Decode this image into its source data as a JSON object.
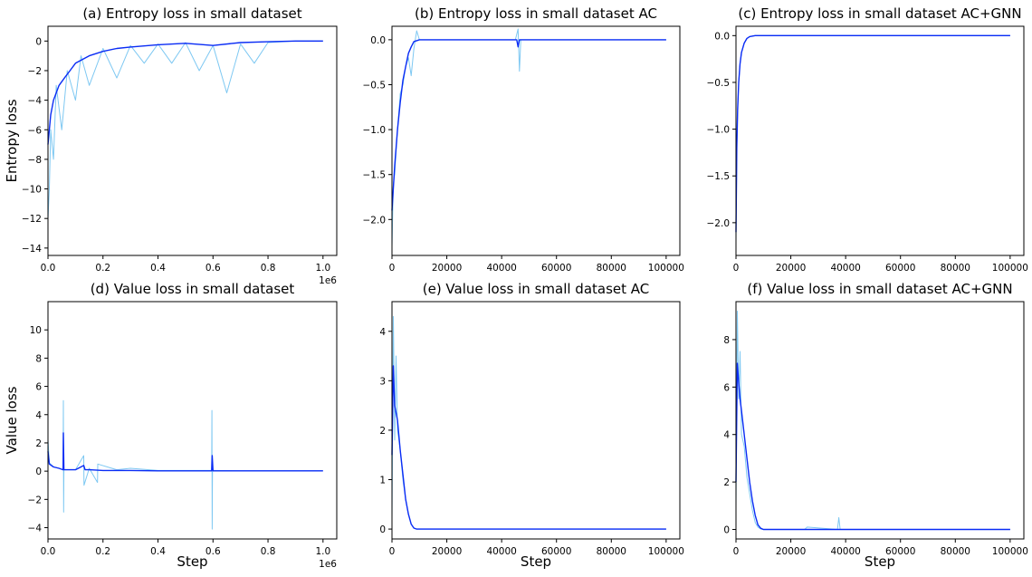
{
  "colors": {
    "raw": "#7ec8f2",
    "smooth": "#0a2cf5"
  },
  "chart_data": [
    {
      "type": "line",
      "title": "(a) Entropy loss in small dataset",
      "xlabel": "",
      "ylabel": "Entropy loss",
      "xlim": [
        0,
        1050000
      ],
      "ylim": [
        -14.5,
        1
      ],
      "xticks": [
        0,
        200000,
        400000,
        600000,
        800000,
        1000000
      ],
      "xticklabels": [
        "0.0",
        "0.2",
        "0.4",
        "0.6",
        "0.8",
        "1.0"
      ],
      "xoffset": "1e6",
      "yticks": [
        -14,
        -12,
        -10,
        -8,
        -6,
        -4,
        -2,
        0
      ],
      "yticklabels": [
        "−14",
        "−12",
        "−10",
        "−8",
        "−6",
        "−4",
        "−2",
        "0"
      ],
      "series": [
        {
          "role": "raw",
          "x": [
            0,
            5000,
            10000,
            20000,
            30000,
            50000,
            70000,
            100000,
            120000,
            150000,
            200000,
            250000,
            300000,
            350000,
            400000,
            450000,
            500000,
            550000,
            600000,
            650000,
            700000,
            750000,
            800000,
            850000,
            900000,
            950000,
            1000000
          ],
          "y": [
            -12,
            -10,
            -6,
            -8,
            -3,
            -6,
            -2,
            -4,
            -1,
            -3,
            -0.5,
            -2.5,
            -0.3,
            -1.5,
            -0.2,
            -1.5,
            -0.1,
            -2,
            -0.3,
            -3.5,
            -0.2,
            -1.5,
            -0.1,
            -0.05,
            0,
            0,
            0
          ]
        },
        {
          "role": "smooth",
          "x": [
            0,
            10000,
            20000,
            40000,
            60000,
            80000,
            100000,
            150000,
            200000,
            250000,
            300000,
            400000,
            500000,
            600000,
            700000,
            800000,
            900000,
            1000000
          ],
          "y": [
            -7,
            -5,
            -4,
            -3,
            -2.5,
            -2,
            -1.5,
            -1,
            -0.7,
            -0.5,
            -0.4,
            -0.25,
            -0.15,
            -0.3,
            -0.1,
            -0.05,
            0,
            0
          ]
        }
      ]
    },
    {
      "type": "line",
      "title": "(b) Entropy loss in small dataset AC",
      "xlabel": "",
      "ylabel": "",
      "xlim": [
        0,
        105000
      ],
      "ylim": [
        -2.4,
        0.15
      ],
      "xticks": [
        0,
        20000,
        40000,
        60000,
        80000,
        100000
      ],
      "xticklabels": [
        "0",
        "20000",
        "40000",
        "60000",
        "80000",
        "100000"
      ],
      "xoffset": "",
      "yticks": [
        -2.0,
        -1.5,
        -1.0,
        -0.5,
        0.0
      ],
      "yticklabels": [
        "−2.0",
        "−1.5",
        "−1.0",
        "−0.5",
        "0.0"
      ],
      "series": [
        {
          "role": "raw",
          "x": [
            0,
            500,
            1000,
            2000,
            3000,
            4000,
            5000,
            6000,
            7000,
            8000,
            9000,
            10000,
            45000,
            46000,
            46500,
            47000,
            100000
          ],
          "y": [
            -2.3,
            -1.6,
            -1.5,
            -1.0,
            -0.6,
            -0.5,
            -0.3,
            -0.2,
            -0.4,
            -0.1,
            0.1,
            0,
            0,
            0.12,
            -0.35,
            0,
            0
          ]
        },
        {
          "role": "smooth",
          "x": [
            0,
            1000,
            2000,
            3000,
            4000,
            5000,
            6000,
            7000,
            8000,
            10000,
            45500,
            46000,
            46500,
            100000
          ],
          "y": [
            -1.9,
            -1.4,
            -1.0,
            -0.7,
            -0.45,
            -0.3,
            -0.15,
            -0.08,
            -0.02,
            0,
            0,
            -0.08,
            0,
            0
          ]
        }
      ]
    },
    {
      "type": "line",
      "title": "(c) Entropy loss in small dataset AC+GNN",
      "xlabel": "",
      "ylabel": "",
      "xlim": [
        0,
        105000
      ],
      "ylim": [
        -2.35,
        0.1
      ],
      "xticks": [
        0,
        20000,
        40000,
        60000,
        80000,
        100000
      ],
      "xticklabels": [
        "0",
        "20000",
        "40000",
        "60000",
        "80000",
        "100000"
      ],
      "xoffset": "",
      "yticks": [
        -2.0,
        -1.5,
        -1.0,
        -0.5,
        0.0
      ],
      "yticklabels": [
        "−2.0",
        "−1.5",
        "−1.0",
        "−0.5",
        "0.0"
      ],
      "series": [
        {
          "role": "raw",
          "x": [
            0,
            300,
            600,
            1000,
            1500,
            2000,
            3000,
            4000,
            5000,
            7000,
            100000
          ],
          "y": [
            -2.2,
            -1.2,
            -0.8,
            -0.5,
            -0.3,
            -0.18,
            -0.08,
            -0.03,
            -0.01,
            0,
            0
          ]
        },
        {
          "role": "smooth",
          "x": [
            0,
            300,
            600,
            1000,
            1500,
            2000,
            3000,
            4000,
            5000,
            7000,
            100000
          ],
          "y": [
            -2.1,
            -1.2,
            -0.8,
            -0.5,
            -0.3,
            -0.18,
            -0.08,
            -0.03,
            -0.01,
            0,
            0
          ]
        }
      ]
    },
    {
      "type": "line",
      "title": "(d) Value loss in small dataset",
      "xlabel": "Step",
      "ylabel": "Value loss",
      "xlim": [
        0,
        1050000
      ],
      "ylim": [
        -4.8,
        12
      ],
      "xticks": [
        0,
        200000,
        400000,
        600000,
        800000,
        1000000
      ],
      "xticklabels": [
        "0.0",
        "0.2",
        "0.4",
        "0.6",
        "0.8",
        "1.0"
      ],
      "xoffset": "1e6",
      "yticks": [
        -4,
        -2,
        0,
        2,
        4,
        6,
        8,
        10
      ],
      "yticklabels": [
        "−4",
        "−2",
        "0",
        "2",
        "4",
        "6",
        "8",
        "10"
      ],
      "series": [
        {
          "role": "raw",
          "x": [
            0,
            5000,
            20000,
            40000,
            55000,
            56000,
            57000,
            58000,
            59000,
            100000,
            130000,
            131000,
            150000,
            180000,
            181000,
            250000,
            300000,
            400000,
            500000,
            595000,
            596000,
            597000,
            598000,
            600000,
            700000,
            1000000
          ],
          "y": [
            2.2,
            0.6,
            0.3,
            0.2,
            0.1,
            5,
            -2.9,
            0.1,
            0.1,
            0.1,
            1.1,
            -1.0,
            0.2,
            -0.8,
            0.5,
            0.1,
            0.2,
            0.05,
            0.05,
            0.05,
            4.3,
            -4.1,
            0.05,
            0.05,
            0.02,
            0.02
          ]
        },
        {
          "role": "smooth",
          "x": [
            0,
            5000,
            20000,
            40000,
            55000,
            56000,
            58000,
            60000,
            100000,
            130000,
            135000,
            150000,
            200000,
            300000,
            400000,
            595000,
            597000,
            600000,
            700000,
            1000000
          ],
          "y": [
            1.4,
            0.5,
            0.3,
            0.2,
            0.1,
            2.7,
            0.1,
            0.1,
            0.1,
            0.4,
            0.1,
            0.1,
            0.05,
            0.05,
            0.02,
            0.02,
            1.1,
            0.02,
            0.02,
            0.02
          ]
        }
      ]
    },
    {
      "type": "line",
      "title": "(e) Value loss in small dataset AC",
      "xlabel": "Step",
      "ylabel": "",
      "xlim": [
        0,
        105000
      ],
      "ylim": [
        -0.2,
        4.6
      ],
      "xticks": [
        0,
        20000,
        40000,
        60000,
        80000,
        100000
      ],
      "xticklabels": [
        "0",
        "20000",
        "40000",
        "60000",
        "80000",
        "100000"
      ],
      "xoffset": "",
      "yticks": [
        0,
        1,
        2,
        3,
        4
      ],
      "yticklabels": [
        "0",
        "1",
        "2",
        "3",
        "4"
      ],
      "series": [
        {
          "role": "raw",
          "x": [
            0,
            500,
            1000,
            1500,
            2000,
            3000,
            4000,
            5000,
            6000,
            7000,
            8000,
            9000,
            100000
          ],
          "y": [
            0.2,
            4.3,
            1.8,
            3.5,
            2.0,
            1.6,
            1.0,
            0.6,
            0.3,
            0.1,
            0.02,
            0,
            0
          ]
        },
        {
          "role": "smooth",
          "x": [
            0,
            500,
            1000,
            2000,
            3000,
            4000,
            5000,
            6000,
            7000,
            8000,
            9000,
            100000
          ],
          "y": [
            1.5,
            3.3,
            2.5,
            2.2,
            1.6,
            1.1,
            0.6,
            0.3,
            0.1,
            0.02,
            0,
            0
          ]
        }
      ]
    },
    {
      "type": "line",
      "title": "(f) Value loss in small dataset AC+GNN",
      "xlabel": "Step",
      "ylabel": "",
      "xlim": [
        0,
        105000
      ],
      "ylim": [
        -0.4,
        9.6
      ],
      "xticks": [
        0,
        20000,
        40000,
        60000,
        80000,
        100000
      ],
      "xticklabels": [
        "0",
        "20000",
        "40000",
        "60000",
        "80000",
        "100000"
      ],
      "xoffset": "",
      "yticks": [
        0,
        2,
        4,
        6,
        8
      ],
      "yticklabels": [
        "0",
        "2",
        "4",
        "6",
        "8"
      ],
      "series": [
        {
          "role": "raw",
          "x": [
            0,
            500,
            1000,
            1500,
            2000,
            3000,
            4000,
            5000,
            6000,
            7000,
            8000,
            9000,
            10000,
            25000,
            26000,
            37000,
            37500,
            38000,
            100000
          ],
          "y": [
            1.0,
            9.2,
            5.5,
            7.5,
            4.0,
            3.5,
            2.2,
            1.5,
            0.8,
            0.3,
            0.1,
            0.02,
            0,
            0,
            0.1,
            0,
            0.5,
            0,
            0
          ]
        },
        {
          "role": "smooth",
          "x": [
            0,
            500,
            1000,
            1500,
            2000,
            3000,
            4000,
            5000,
            6000,
            7000,
            8000,
            9000,
            10000,
            100000
          ],
          "y": [
            2.0,
            7.0,
            6.2,
            5.5,
            5.0,
            4.0,
            3.0,
            2.0,
            1.2,
            0.6,
            0.2,
            0.05,
            0,
            0
          ]
        }
      ]
    }
  ]
}
